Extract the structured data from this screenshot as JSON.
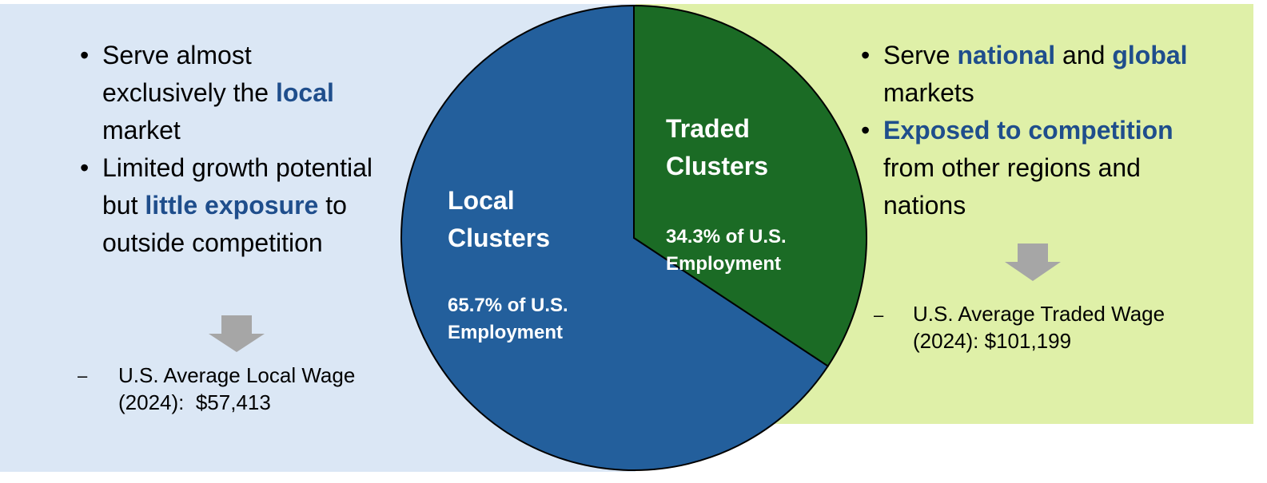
{
  "chart_data": {
    "type": "pie",
    "categories": [
      "Local Clusters",
      "Traded Clusters"
    ],
    "values": [
      65.7,
      34.3
    ],
    "value_labels": [
      "65.7% of U.S. Employment",
      "34.3% of U.S. Employment"
    ],
    "colors": [
      "#235f9c",
      "#1b6b25"
    ]
  },
  "panels": [
    {
      "bullets": [
        [
          {
            "text": "Serve almost exclusively the "
          },
          {
            "text": "local",
            "bold": true
          },
          {
            "text": " market"
          }
        ],
        [
          {
            "text": "Limited growth potential but "
          },
          {
            "text": "little exposure",
            "bold": true
          },
          {
            "text": " to outside competition"
          }
        ]
      ],
      "wage": "U.S. Average Local Wage (2024):  $57,413"
    },
    {
      "bullets": [
        [
          {
            "text": "Serve "
          },
          {
            "text": "national",
            "bold": true
          },
          {
            "text": " and "
          },
          {
            "text": "global",
            "bold": true
          },
          {
            "text": " markets"
          }
        ],
        [
          {
            "text": "Exposed to competition",
            "bold": true
          },
          {
            "text": " from other regions and nations"
          }
        ]
      ],
      "wage": "U.S. Average Traded Wage (2024): $101,199"
    }
  ]
}
